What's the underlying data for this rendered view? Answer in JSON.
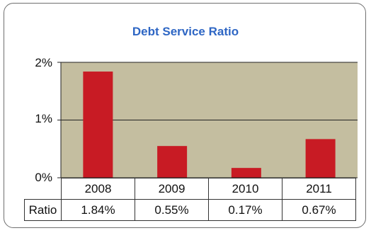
{
  "chart_data": {
    "type": "bar",
    "title": "Debt Service Ratio",
    "categories": [
      "2008",
      "2009",
      "2010",
      "2011"
    ],
    "series": [
      {
        "values": [
          1.84,
          0.55,
          0.17,
          0.67
        ]
      }
    ],
    "ylim": [
      0,
      2
    ],
    "yticks": [
      "0%",
      "1%",
      "2%"
    ],
    "grid": true,
    "data_table": {
      "row_label": "Ratio",
      "values": [
        "1.84%",
        "0.55%",
        "0.17%",
        "0.67%"
      ]
    },
    "colors": {
      "bar": "#c81b24",
      "plot_bg": "#c4bea0",
      "title": "#2e66c4"
    }
  }
}
